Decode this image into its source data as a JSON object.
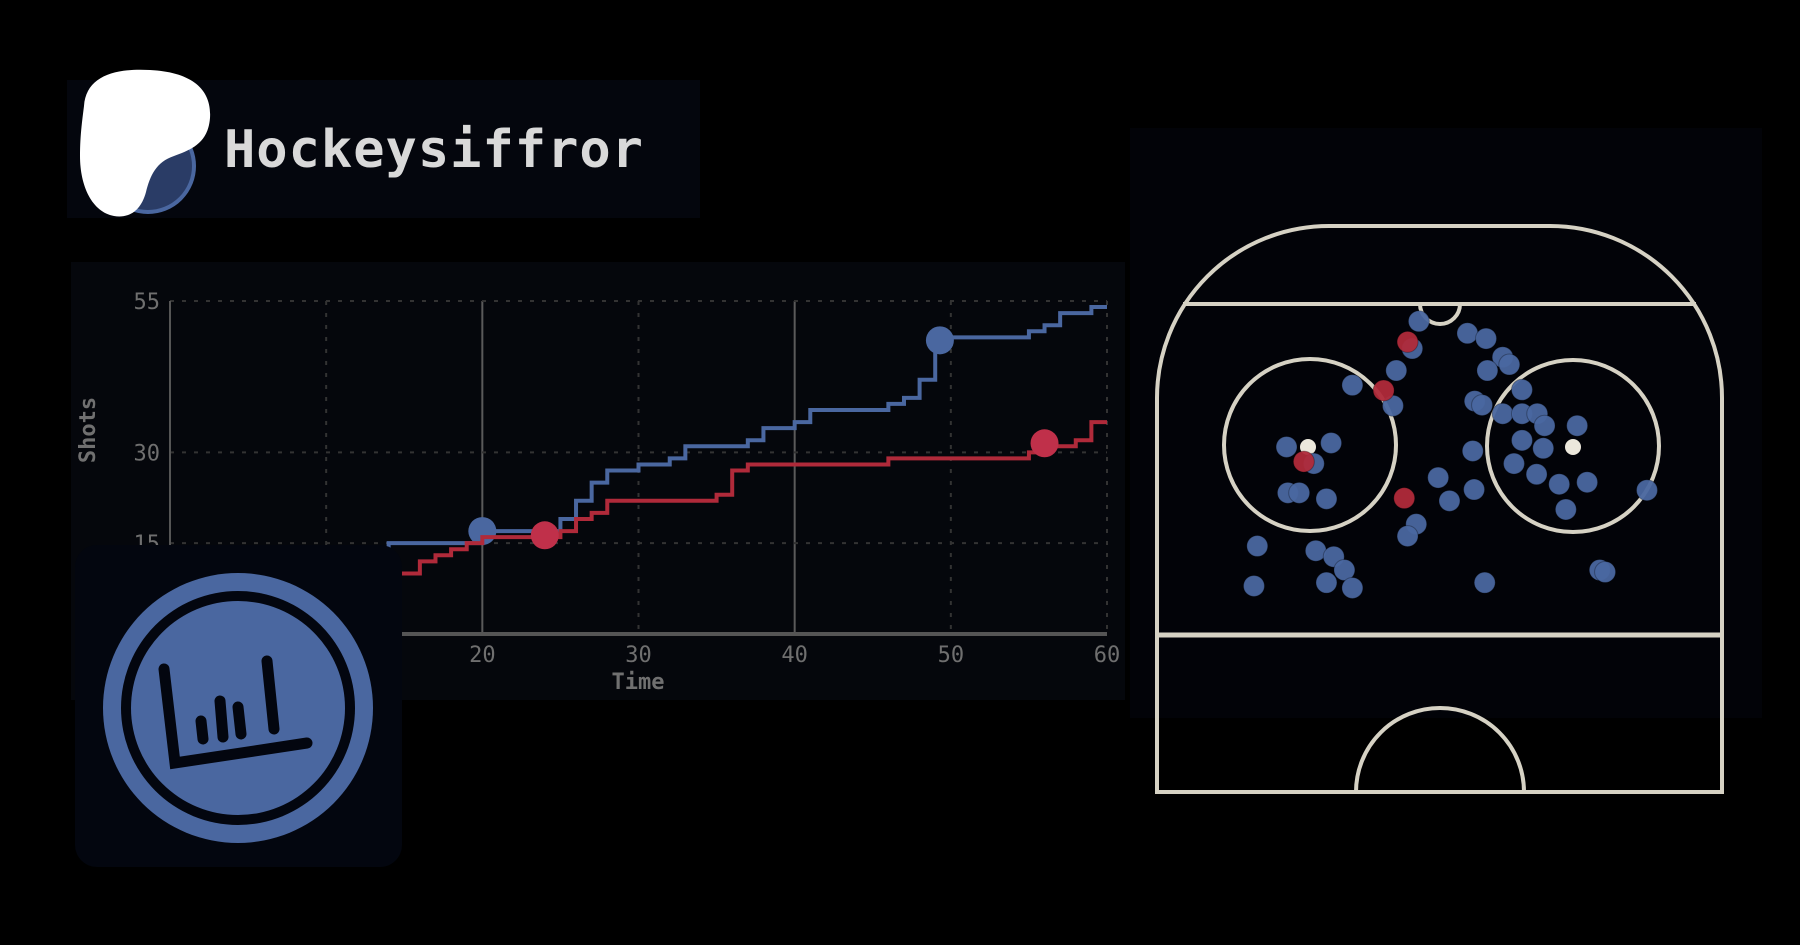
{
  "header": {
    "title": "Hockeysiffror",
    "logo_icon": "blob-logo-icon"
  },
  "colors": {
    "home": "#4a67a0",
    "away": "#b02a3a",
    "rink_lines": "#d6d2c4",
    "background": "#000000"
  },
  "chart_data": [
    {
      "type": "line",
      "step": true,
      "xlabel": "Time",
      "ylabel": "Shots",
      "xlim": [
        0,
        60
      ],
      "ylim": [
        0,
        55
      ],
      "xticks": [
        20,
        30,
        40,
        50,
        60
      ],
      "yticks": [
        15,
        30,
        55
      ],
      "grid": true,
      "series": [
        {
          "color": "#4a67a0",
          "points": [
            [
              0,
              0
            ],
            [
              2,
              1
            ],
            [
              4,
              3
            ],
            [
              6,
              5
            ],
            [
              8,
              7
            ],
            [
              10,
              10
            ],
            [
              12,
              13
            ],
            [
              14,
              15
            ],
            [
              20,
              17
            ],
            [
              25,
              19
            ],
            [
              26,
              22
            ],
            [
              27,
              25
            ],
            [
              28,
              27
            ],
            [
              30,
              28
            ],
            [
              32,
              29
            ],
            [
              33,
              31
            ],
            [
              37,
              32
            ],
            [
              38,
              34
            ],
            [
              40,
              35
            ],
            [
              41,
              37
            ],
            [
              46,
              38
            ],
            [
              47,
              39
            ],
            [
              48,
              42
            ],
            [
              49,
              48
            ],
            [
              50,
              49
            ],
            [
              55,
              50
            ],
            [
              56,
              51
            ],
            [
              57,
              53
            ],
            [
              59,
              54
            ],
            [
              60,
              54
            ]
          ],
          "markers": [
            [
              20,
              17
            ],
            [
              49.3,
              48.5
            ]
          ]
        },
        {
          "color": "#b02a3a",
          "points": [
            [
              0,
              0
            ],
            [
              3,
              2
            ],
            [
              6,
              4
            ],
            [
              9,
              6
            ],
            [
              12,
              8
            ],
            [
              14,
              10
            ],
            [
              16,
              12
            ],
            [
              17,
              13
            ],
            [
              18,
              14
            ],
            [
              19,
              15
            ],
            [
              20,
              16
            ],
            [
              25,
              17
            ],
            [
              26,
              19
            ],
            [
              27,
              20
            ],
            [
              28,
              22
            ],
            [
              34,
              22
            ],
            [
              35,
              23
            ],
            [
              36,
              27
            ],
            [
              37,
              28
            ],
            [
              45,
              28
            ],
            [
              46,
              29
            ],
            [
              55,
              30
            ],
            [
              56,
              31
            ],
            [
              58,
              32
            ],
            [
              59,
              35
            ],
            [
              60,
              35
            ]
          ],
          "markers": [
            [
              24,
              16.3
            ],
            [
              56,
              31.5
            ]
          ]
        }
      ]
    },
    {
      "type": "scatter",
      "units": "ft from center line (x) and from goal line (y)",
      "series": [
        {
          "color": "#4a67a0",
          "points": [
            [
              -3.1,
              2.6
            ],
            [
              -4.1,
              6.7
            ],
            [
              -6.5,
              10.0
            ],
            [
              -13.1,
              12.2
            ],
            [
              -7.0,
              15.3
            ],
            [
              4.2,
              4.4
            ],
            [
              7.0,
              5.2
            ],
            [
              9.5,
              8.0
            ],
            [
              10.5,
              9.1
            ],
            [
              7.2,
              10.0
            ],
            [
              12.4,
              12.9
            ],
            [
              5.3,
              14.6
            ],
            [
              6.4,
              15.2
            ],
            [
              9.5,
              16.5
            ],
            [
              12.4,
              16.5
            ],
            [
              14.7,
              16.5
            ],
            [
              15.8,
              18.3
            ],
            [
              20.7,
              18.3
            ],
            [
              12.4,
              20.5
            ],
            [
              15.6,
              21.7
            ],
            [
              5.0,
              22.1
            ],
            [
              11.2,
              24.0
            ],
            [
              14.6,
              25.6
            ],
            [
              18.0,
              27.1
            ],
            [
              22.2,
              26.8
            ],
            [
              31.2,
              28.0
            ],
            [
              19.0,
              30.9
            ],
            [
              5.2,
              27.9
            ],
            [
              1.5,
              29.6
            ],
            [
              -0.2,
              26.1
            ],
            [
              -3.5,
              33.1
            ],
            [
              -4.8,
              34.9
            ],
            [
              -23.0,
              21.5
            ],
            [
              -16.3,
              20.9
            ],
            [
              -18.9,
              24.0
            ],
            [
              -22.8,
              28.4
            ],
            [
              -21.1,
              28.4
            ],
            [
              -17.0,
              29.3
            ],
            [
              -27.4,
              36.4
            ],
            [
              -18.6,
              37.1
            ],
            [
              -15.9,
              38.0
            ],
            [
              -14.3,
              40.0
            ],
            [
              -17.0,
              41.9
            ],
            [
              -13.1,
              42.7
            ],
            [
              -27.9,
              42.4
            ],
            [
              6.8,
              41.9
            ],
            [
              24.1,
              40.0
            ],
            [
              24.9,
              40.3
            ]
          ]
        },
        {
          "color": "#b02a3a",
          "points": [
            [
              -4.8,
              5.7
            ],
            [
              -8.4,
              13.0
            ],
            [
              -20.4,
              23.7
            ],
            [
              -5.3,
              29.2
            ]
          ]
        }
      ]
    }
  ],
  "logo_card": {
    "icon": "bar-chart-badge-icon"
  }
}
